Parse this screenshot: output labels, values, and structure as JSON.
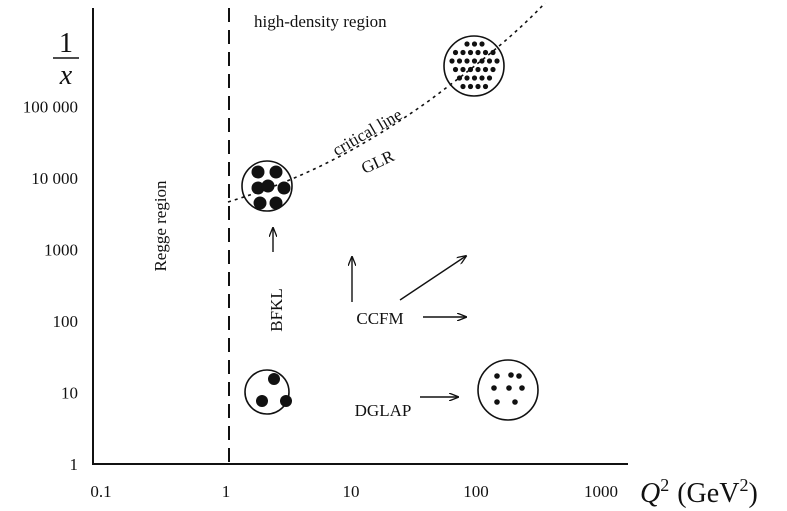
{
  "y_axis": {
    "label_numerator": "1",
    "label_denominator": "x",
    "ticks": [
      "1",
      "10",
      "100",
      "1000",
      "10 000",
      "100 000"
    ]
  },
  "x_axis": {
    "label_symbol": "Q",
    "label_symbol_exponent": "2",
    "label_unit": "(GeV",
    "label_unit_exponent": "2",
    "label_unit_close": ")",
    "ticks": [
      "0.1",
      "1",
      "10",
      "100",
      "1000"
    ]
  },
  "regions": {
    "high_density": "high-density region",
    "regge": "Regge region"
  },
  "labels": {
    "critical_line": "critical line",
    "glr": "GLR",
    "bfkl": "BFKL",
    "ccfm": "CCFM",
    "dglap": "DGLAP"
  }
}
